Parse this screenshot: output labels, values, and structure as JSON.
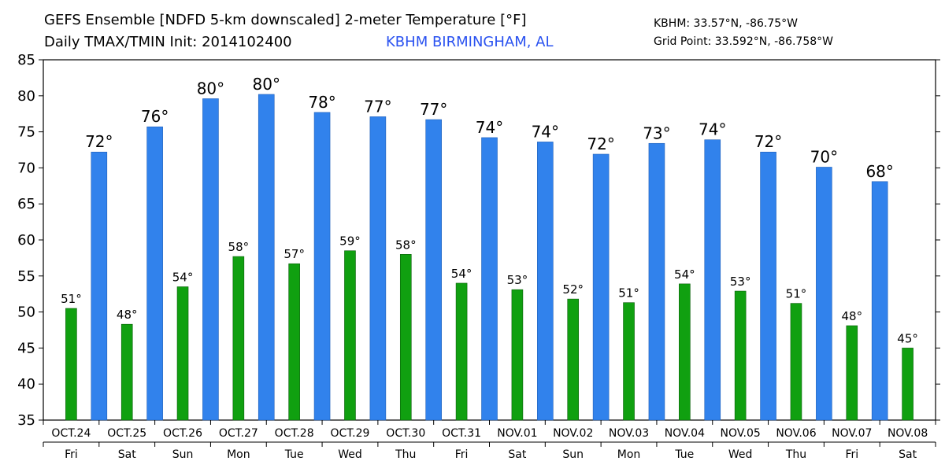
{
  "header": {
    "title_line1": "GEFS Ensemble [NDFD 5-km downscaled] 2-meter Temperature [°F]",
    "title_line2": "Daily TMAX/TMIN Init: 2014102400",
    "location": "KBHM BIRMINGHAM, AL",
    "station_coords": "KBHM: 33.57°N, -86.75°W",
    "grid_point": "Grid Point: 33.592°N, -86.758°W"
  },
  "colors": {
    "tmax_bar": "#3182ec",
    "tmin_bar": "#10a010",
    "location_text": "#2a52f0"
  },
  "chart_data": {
    "type": "bar",
    "title": "GEFS Ensemble [NDFD 5-km downscaled] 2-meter Temperature [°F]",
    "subtitle": "Daily TMAX/TMIN Init: 2014102400",
    "ylim": [
      35,
      85
    ],
    "yticks": [
      35,
      40,
      45,
      50,
      55,
      60,
      65,
      70,
      75,
      80,
      85
    ],
    "grid": false,
    "dates": [
      "OCT.24",
      "OCT.25",
      "OCT.26",
      "OCT.27",
      "OCT.28",
      "OCT.29",
      "OCT.30",
      "OCT.31",
      "NOV.01",
      "NOV.02",
      "NOV.03",
      "NOV.04",
      "NOV.05",
      "NOV.06",
      "NOV.07",
      "NOV.08"
    ],
    "days": [
      "Fri",
      "Sat",
      "Sun",
      "Mon",
      "Tue",
      "Wed",
      "Thu",
      "Fri",
      "Sat",
      "Sun",
      "Mon",
      "Tue",
      "Wed",
      "Thu",
      "Fri",
      "Sat"
    ],
    "tmin": {
      "values": [
        50.5,
        48.3,
        53.5,
        57.7,
        56.7,
        58.5,
        58.0,
        54.0,
        53.1,
        51.8,
        51.3,
        53.9,
        52.9,
        51.2,
        48.1,
        45.0
      ],
      "labels": [
        "51°",
        "48°",
        "54°",
        "58°",
        "57°",
        "59°",
        "58°",
        "54°",
        "53°",
        "52°",
        "51°",
        "54°",
        "53°",
        "51°",
        "48°",
        "45°"
      ]
    },
    "tmax": {
      "values": [
        72.2,
        75.7,
        79.6,
        80.2,
        77.7,
        77.1,
        76.7,
        74.2,
        73.6,
        71.9,
        73.4,
        73.9,
        72.2,
        70.1,
        68.1
      ],
      "labels": [
        "72°",
        "76°",
        "80°",
        "80°",
        "78°",
        "77°",
        "77°",
        "74°",
        "74°",
        "72°",
        "73°",
        "74°",
        "72°",
        "70°",
        "68°"
      ]
    }
  }
}
